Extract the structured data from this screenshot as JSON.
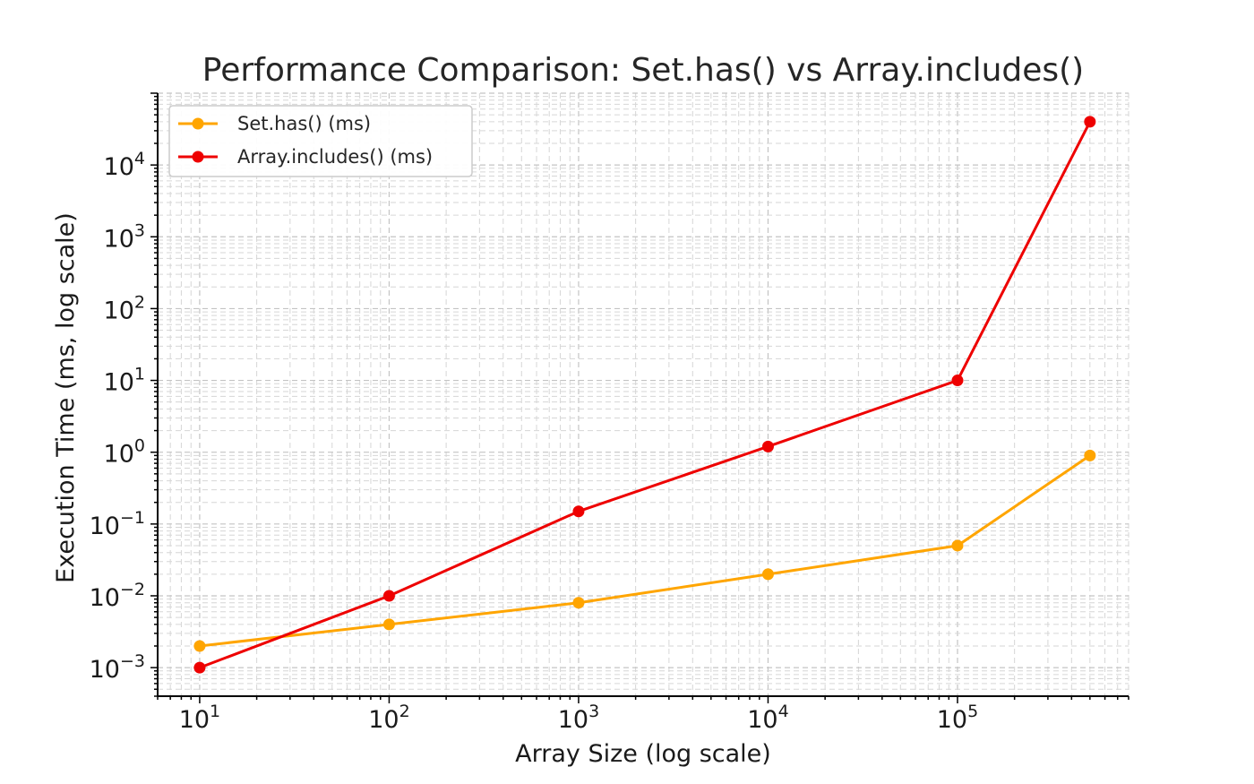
{
  "chart_data": {
    "type": "line",
    "title": "Performance Comparison: Set.has() vs Array.includes()",
    "xlabel": "Array Size (log scale)",
    "ylabel": "Execution Time (ms, log scale)",
    "x_scale": "log",
    "y_scale": "log",
    "xlim": [
      6,
      800000
    ],
    "ylim": [
      0.0004,
      100000
    ],
    "x_ticks": [
      {
        "value": 10,
        "base": "10",
        "exp": "1"
      },
      {
        "value": 100,
        "base": "10",
        "exp": "2"
      },
      {
        "value": 1000,
        "base": "10",
        "exp": "3"
      },
      {
        "value": 10000,
        "base": "10",
        "exp": "4"
      },
      {
        "value": 100000,
        "base": "10",
        "exp": "5"
      }
    ],
    "y_ticks": [
      {
        "value": 0.001,
        "base": "10",
        "exp": "−3"
      },
      {
        "value": 0.01,
        "base": "10",
        "exp": "−2"
      },
      {
        "value": 0.1,
        "base": "10",
        "exp": "−1"
      },
      {
        "value": 1,
        "base": "10",
        "exp": "0"
      },
      {
        "value": 10,
        "base": "10",
        "exp": "1"
      },
      {
        "value": 100,
        "base": "10",
        "exp": "2"
      },
      {
        "value": 1000,
        "base": "10",
        "exp": "3"
      },
      {
        "value": 10000,
        "base": "10",
        "exp": "4"
      }
    ],
    "grid": true,
    "legend_position": "top-left",
    "x": [
      10,
      100,
      1000,
      10000,
      100000,
      500000
    ],
    "series": [
      {
        "name": "Set.has() (ms)",
        "color": "#FFA500",
        "values": [
          0.002,
          0.004,
          0.008,
          0.02,
          0.05,
          0.9
        ]
      },
      {
        "name": "Array.includes() (ms)",
        "color": "#EE0000",
        "values": [
          0.001,
          0.01,
          0.15,
          1.2,
          10,
          40000
        ]
      }
    ]
  }
}
